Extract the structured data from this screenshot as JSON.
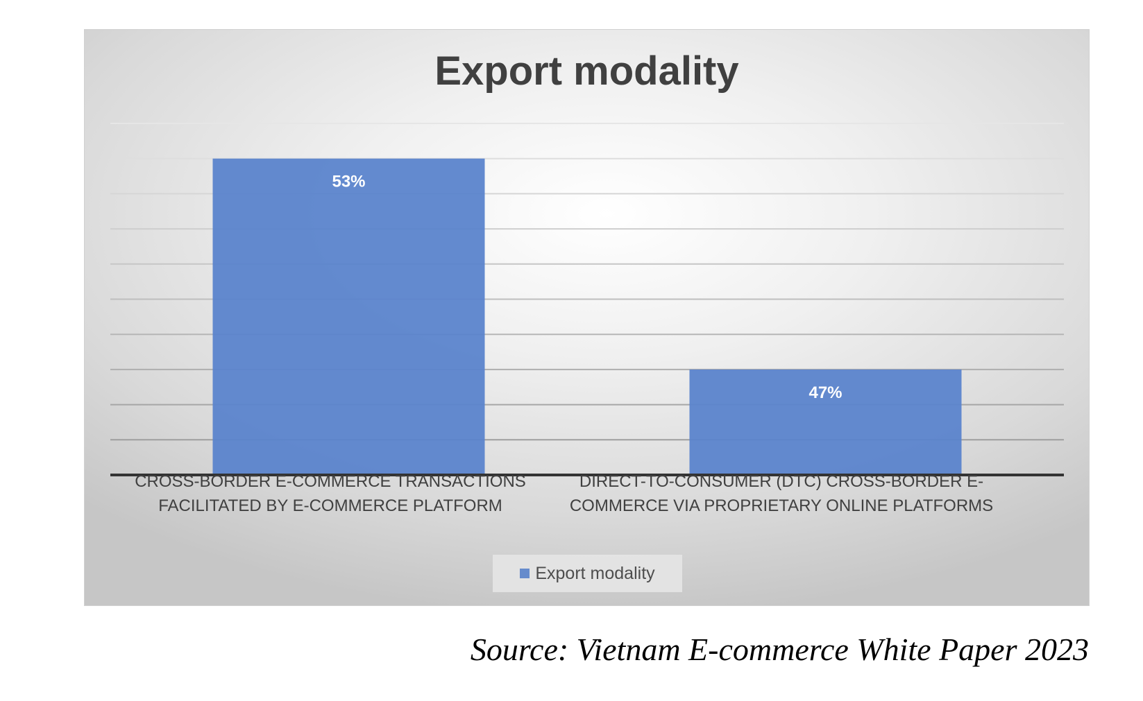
{
  "chart_data": {
    "type": "bar",
    "title": "Export modality",
    "categories": [
      [
        "CROSS-BORDER E-COMMERCE TRANSACTIONS",
        "FACILITATED BY E-COMMERCE PLATFORM"
      ],
      [
        "DIRECT-TO-CONSUMER (DTC) CROSS-BORDER E-",
        "COMMERCE VIA PROPRIETARY ONLINE PLATFORMS"
      ]
    ],
    "values": [
      53,
      47
    ],
    "data_labels": [
      "53%",
      "47%"
    ],
    "series": [
      {
        "name": "Export modality",
        "values": [
          53,
          47
        ]
      }
    ],
    "xlabel": "",
    "ylabel": "",
    "ylim": [
      44,
      54
    ],
    "ystep": 1,
    "grid": true,
    "legend_position": "bottom",
    "bar_color": "#5b84cc"
  },
  "source": "Source: Vietnam E-commerce White Paper 2023"
}
